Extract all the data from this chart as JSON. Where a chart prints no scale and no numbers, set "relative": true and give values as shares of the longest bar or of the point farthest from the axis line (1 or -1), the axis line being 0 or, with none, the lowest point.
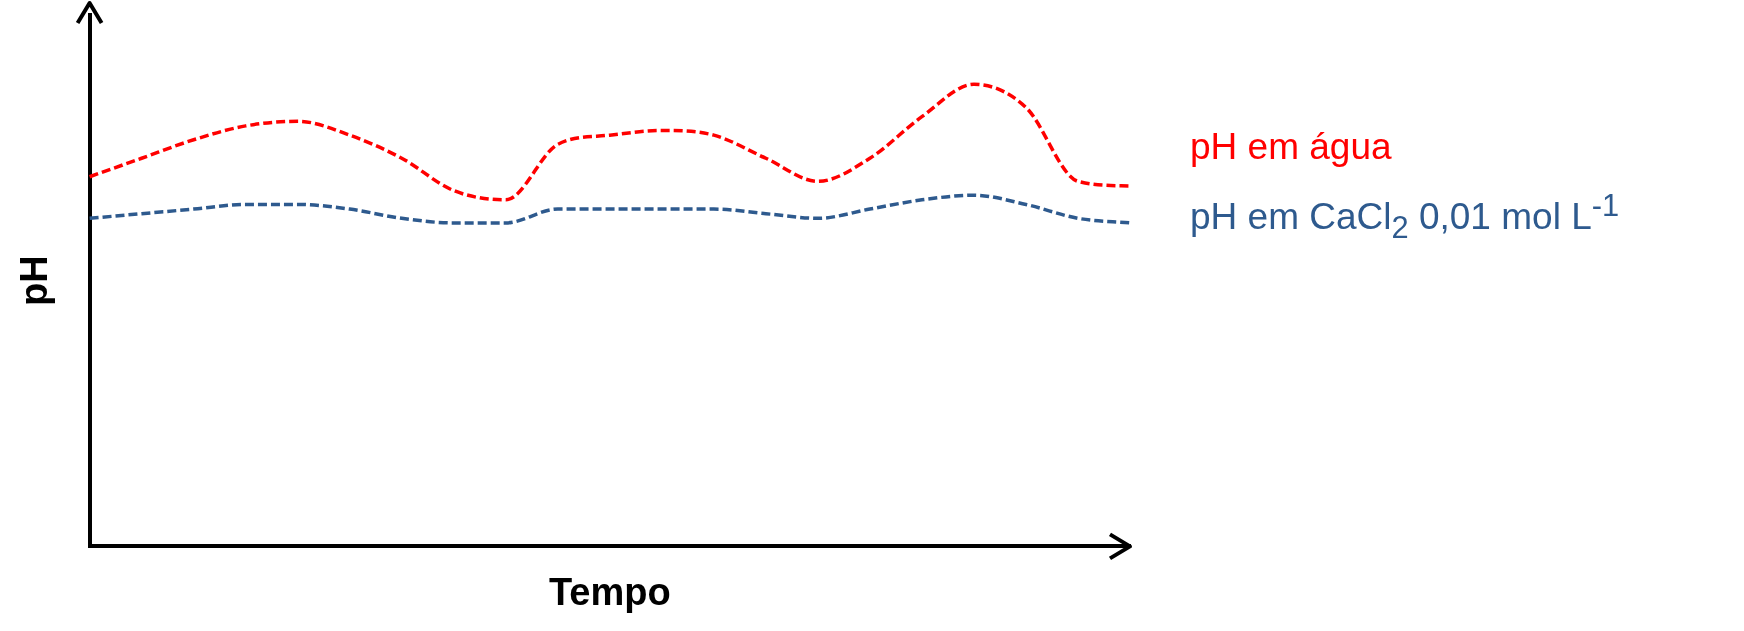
{
  "chart_data": {
    "type": "line",
    "relative": true,
    "xlabel": "Tempo",
    "ylabel": "pH",
    "legend": "right",
    "grid": false,
    "marker": "none",
    "line_style": "dashed",
    "categories": [
      null,
      null,
      null,
      null,
      null,
      null,
      null,
      null,
      null,
      null,
      null,
      null,
      null,
      null,
      null,
      null,
      null,
      null,
      null,
      null,
      null
    ],
    "series": [
      {
        "name": "pH em água",
        "color": "#ff0000",
        "values": [
          0.8,
          0.84,
          0.88,
          0.91,
          0.92,
          0.89,
          0.84,
          0.77,
          0.75,
          0.87,
          0.89,
          0.9,
          0.89,
          0.84,
          0.79,
          0.84,
          0.93,
          1,
          0.95,
          0.79,
          0.78
        ]
      },
      {
        "name": "pH em CaCl$_{2}$ 0,01 mol L$^{-1}$",
        "color": "#2e5a8e",
        "values": [
          0.71,
          0.72,
          0.73,
          0.74,
          0.74,
          0.73,
          0.71,
          0.7,
          0.7,
          0.73,
          0.73,
          0.73,
          0.73,
          0.72,
          0.71,
          0.73,
          0.75,
          0.76,
          0.74,
          0.71,
          0.7
        ]
      }
    ]
  }
}
